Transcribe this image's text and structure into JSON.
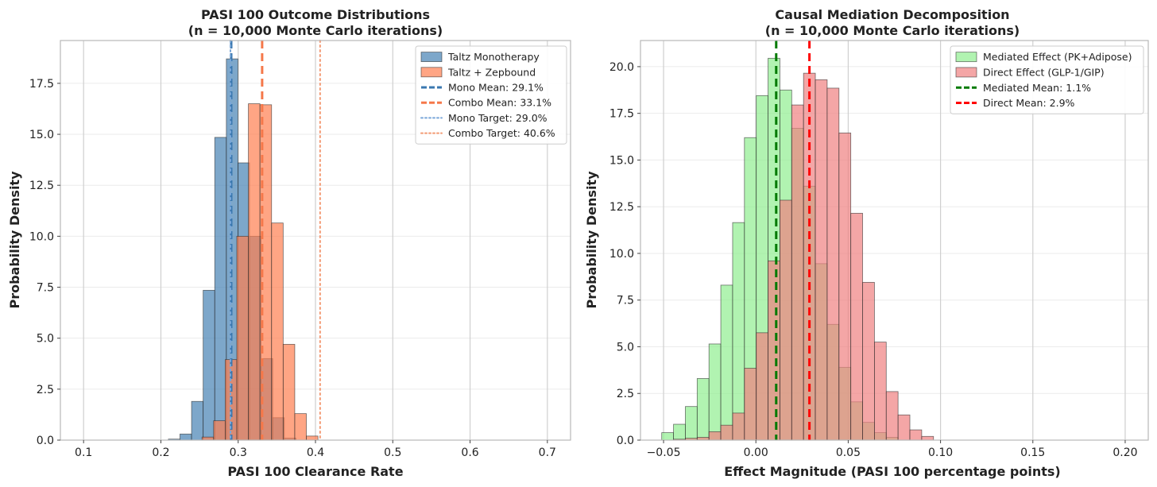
{
  "chart_data": [
    {
      "type": "bar",
      "title": "PASI 100 Outcome Distributions",
      "subtitle": "(n = 10,000 Monte Carlo iterations)",
      "xlabel": "PASI 100 Clearance Rate",
      "ylabel": "Probability Density",
      "xlim": [
        0.07,
        0.73
      ],
      "ylim": [
        0,
        19.6
      ],
      "xticks": [
        0.1,
        0.2,
        0.3,
        0.4,
        0.5,
        0.6,
        0.7
      ],
      "xtick_labels": [
        "0.1",
        "0.2",
        "0.3",
        "0.4",
        "0.5",
        "0.6",
        "0.7"
      ],
      "yticks": [
        0,
        2.5,
        5,
        7.5,
        10,
        12.5,
        15,
        17.5
      ],
      "ytick_labels": [
        "0.0",
        "2.5",
        "5.0",
        "7.5",
        "10.0",
        "12.5",
        "15.0",
        "17.5"
      ],
      "grid": true,
      "legend_position": "top-right",
      "histograms": [
        {
          "name": "Taltz Monotherapy",
          "color": "#4682b4",
          "alpha": 0.7,
          "bins": [
            {
              "x0": 0.2097,
              "x1": 0.2247,
              "density": 0.05
            },
            {
              "x0": 0.2247,
              "x1": 0.2397,
              "density": 0.3
            },
            {
              "x0": 0.2397,
              "x1": 0.2547,
              "density": 1.9
            },
            {
              "x0": 0.2547,
              "x1": 0.2697,
              "density": 7.35
            },
            {
              "x0": 0.2697,
              "x1": 0.2847,
              "density": 14.85
            },
            {
              "x0": 0.2847,
              "x1": 0.2997,
              "density": 18.7
            },
            {
              "x0": 0.2997,
              "x1": 0.3147,
              "density": 13.6
            },
            {
              "x0": 0.3147,
              "x1": 0.3297,
              "density": 10.0
            },
            {
              "x0": 0.3297,
              "x1": 0.3447,
              "density": 4.0
            },
            {
              "x0": 0.3447,
              "x1": 0.3597,
              "density": 1.1
            },
            {
              "x0": 0.3597,
              "x1": 0.3747,
              "density": 0.1
            }
          ]
        },
        {
          "name": "Taltz + Zepbound",
          "color": "#ff7f50",
          "alpha": 0.7,
          "bins": [
            {
              "x0": 0.2532,
              "x1": 0.2682,
              "density": 0.15
            },
            {
              "x0": 0.2682,
              "x1": 0.2832,
              "density": 0.95
            },
            {
              "x0": 0.2832,
              "x1": 0.2982,
              "density": 3.95
            },
            {
              "x0": 0.2982,
              "x1": 0.3132,
              "density": 10.0
            },
            {
              "x0": 0.3132,
              "x1": 0.3282,
              "density": 16.5
            },
            {
              "x0": 0.3282,
              "x1": 0.3432,
              "density": 16.45
            },
            {
              "x0": 0.3432,
              "x1": 0.3582,
              "density": 10.65
            },
            {
              "x0": 0.3582,
              "x1": 0.3732,
              "density": 4.7
            },
            {
              "x0": 0.3732,
              "x1": 0.3882,
              "density": 1.3
            },
            {
              "x0": 0.3882,
              "x1": 0.4032,
              "density": 0.2
            }
          ]
        }
      ],
      "lines": [
        {
          "name": "Mono Mean: 29.1%",
          "x": 0.291,
          "color": "#3a78b0",
          "style": "dashed",
          "width": 3
        },
        {
          "name": "Combo Mean: 33.1%",
          "x": 0.331,
          "color": "#f5784a",
          "style": "dashed",
          "width": 3
        },
        {
          "name": "Mono Target: 29.0%",
          "x": 0.29,
          "color": "#7aa7d9",
          "style": "dotted",
          "width": 2
        },
        {
          "name": "Combo Target: 40.6%",
          "x": 0.406,
          "color": "#f39a74",
          "style": "dotted",
          "width": 2
        }
      ],
      "legend": [
        "Taltz Monotherapy",
        "Taltz + Zepbound",
        "Mono Mean: 29.1%",
        "Combo Mean: 33.1%",
        "Mono Target: 29.0%",
        "Combo Target: 40.6%"
      ]
    },
    {
      "type": "bar",
      "title": "Causal Mediation Decomposition",
      "subtitle": "(n = 10,000 Monte Carlo iterations)",
      "xlabel": "Effect Magnitude (PASI 100 percentage points)",
      "ylabel": "Probability Density",
      "xlim": [
        -0.0625,
        0.2125
      ],
      "ylim": [
        0,
        21.4
      ],
      "xticks": [
        -0.05,
        0,
        0.05,
        0.1,
        0.15,
        0.2
      ],
      "xtick_labels": [
        "−0.05",
        "0.00",
        "0.05",
        "0.10",
        "0.15",
        "0.20"
      ],
      "yticks": [
        0,
        2.5,
        5,
        7.5,
        10,
        12.5,
        15,
        17.5,
        20
      ],
      "ytick_labels": [
        "0.0",
        "2.5",
        "5.0",
        "7.5",
        "10.0",
        "12.5",
        "15.0",
        "17.5",
        "20.0"
      ],
      "grid": true,
      "legend_position": "top-right",
      "histograms": [
        {
          "name": "Mediated Effect (PK+Adipose)",
          "color": "#90ee90",
          "alpha": 0.7,
          "bins": [
            {
              "x0": -0.051,
              "x1": -0.0446,
              "density": 0.4
            },
            {
              "x0": -0.0446,
              "x1": -0.0382,
              "density": 0.85
            },
            {
              "x0": -0.0382,
              "x1": -0.0318,
              "density": 1.8
            },
            {
              "x0": -0.0318,
              "x1": -0.0254,
              "density": 3.3
            },
            {
              "x0": -0.0254,
              "x1": -0.019,
              "density": 5.15
            },
            {
              "x0": -0.019,
              "x1": -0.0126,
              "density": 8.3
            },
            {
              "x0": -0.0126,
              "x1": -0.0062,
              "density": 11.65
            },
            {
              "x0": -0.0062,
              "x1": 0.0002,
              "density": 16.2
            },
            {
              "x0": 0.0002,
              "x1": 0.0066,
              "density": 18.45
            },
            {
              "x0": 0.0066,
              "x1": 0.013,
              "density": 20.45
            },
            {
              "x0": 0.013,
              "x1": 0.0194,
              "density": 18.75
            },
            {
              "x0": 0.0194,
              "x1": 0.0258,
              "density": 16.7
            },
            {
              "x0": 0.0258,
              "x1": 0.0322,
              "density": 13.6
            },
            {
              "x0": 0.0322,
              "x1": 0.0386,
              "density": 9.45
            },
            {
              "x0": 0.0386,
              "x1": 0.045,
              "density": 6.2
            },
            {
              "x0": 0.045,
              "x1": 0.0514,
              "density": 3.9
            },
            {
              "x0": 0.0514,
              "x1": 0.0578,
              "density": 2.05
            },
            {
              "x0": 0.0578,
              "x1": 0.0642,
              "density": 0.95
            },
            {
              "x0": 0.0642,
              "x1": 0.0706,
              "density": 0.4
            },
            {
              "x0": 0.0706,
              "x1": 0.077,
              "density": 0.15
            }
          ]
        },
        {
          "name": "Direct Effect (GLP-1/GIP)",
          "color": "#f08080",
          "alpha": 0.7,
          "bins": [
            {
              "x0": -0.0446,
              "x1": -0.0382,
              "density": 0.05
            },
            {
              "x0": -0.0382,
              "x1": -0.0318,
              "density": 0.1
            },
            {
              "x0": -0.0318,
              "x1": -0.0254,
              "density": 0.15
            },
            {
              "x0": -0.0254,
              "x1": -0.019,
              "density": 0.45
            },
            {
              "x0": -0.019,
              "x1": -0.0126,
              "density": 0.8
            },
            {
              "x0": -0.0126,
              "x1": -0.0062,
              "density": 1.45
            },
            {
              "x0": -0.0062,
              "x1": 0.0002,
              "density": 3.85
            },
            {
              "x0": 0.0002,
              "x1": 0.0066,
              "density": 5.75
            },
            {
              "x0": 0.0066,
              "x1": 0.013,
              "density": 9.6
            },
            {
              "x0": 0.013,
              "x1": 0.0194,
              "density": 12.85
            },
            {
              "x0": 0.0194,
              "x1": 0.0258,
              "density": 17.95
            },
            {
              "x0": 0.0258,
              "x1": 0.0322,
              "density": 19.65
            },
            {
              "x0": 0.0322,
              "x1": 0.0386,
              "density": 19.3
            },
            {
              "x0": 0.0386,
              "x1": 0.045,
              "density": 18.85
            },
            {
              "x0": 0.045,
              "x1": 0.0514,
              "density": 16.45
            },
            {
              "x0": 0.0514,
              "x1": 0.0578,
              "density": 12.15
            },
            {
              "x0": 0.0578,
              "x1": 0.0642,
              "density": 8.45
            },
            {
              "x0": 0.0642,
              "x1": 0.0706,
              "density": 5.25
            },
            {
              "x0": 0.0706,
              "x1": 0.077,
              "density": 2.6
            },
            {
              "x0": 0.077,
              "x1": 0.0834,
              "density": 1.35
            },
            {
              "x0": 0.0834,
              "x1": 0.0898,
              "density": 0.55
            },
            {
              "x0": 0.0898,
              "x1": 0.0962,
              "density": 0.2
            }
          ]
        }
      ],
      "lines": [
        {
          "name": "Mediated Mean: 1.1%",
          "x": 0.011,
          "color": "#007a00",
          "style": "dashed",
          "width": 3
        },
        {
          "name": "Direct Mean: 2.9%",
          "x": 0.029,
          "color": "#ff0000",
          "style": "dashed",
          "width": 3
        }
      ],
      "legend": [
        "Mediated Effect (PK+Adipose)",
        "Direct Effect (GLP-1/GIP)",
        "Mediated Mean: 1.1%",
        "Direct Mean: 2.9%"
      ]
    }
  ]
}
